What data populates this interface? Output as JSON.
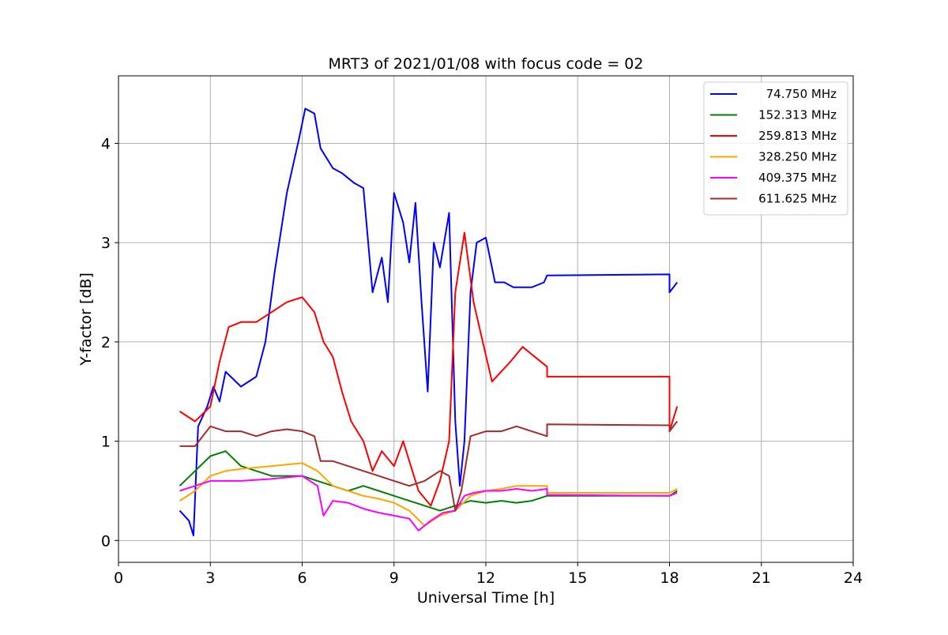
{
  "chart_data": {
    "type": "line",
    "title": "MRT3 of 2021/01/08 with focus code = 02",
    "xlabel": "Universal Time [h]",
    "ylabel": "Y-factor [dB]",
    "xlim": [
      0,
      24
    ],
    "ylim": [
      -0.22,
      4.68
    ],
    "xticks": [
      0,
      3,
      6,
      9,
      12,
      15,
      18,
      21,
      24
    ],
    "yticks": [
      0,
      1,
      2,
      3,
      4
    ],
    "grid": true,
    "legend_position": "top-right",
    "series": [
      {
        "name": "74.750 MHz",
        "color": "#0000ff",
        "points": [
          [
            2.0,
            0.3
          ],
          [
            2.3,
            0.2
          ],
          [
            2.45,
            0.05
          ],
          [
            2.6,
            1.15
          ],
          [
            2.9,
            1.35
          ],
          [
            3.1,
            1.55
          ],
          [
            3.3,
            1.4
          ],
          [
            3.5,
            1.7
          ],
          [
            4.0,
            1.55
          ],
          [
            4.5,
            1.65
          ],
          [
            4.8,
            2.0
          ],
          [
            5.1,
            2.7
          ],
          [
            5.5,
            3.5
          ],
          [
            5.9,
            4.05
          ],
          [
            6.1,
            4.35
          ],
          [
            6.4,
            4.3
          ],
          [
            6.6,
            3.95
          ],
          [
            7.0,
            3.75
          ],
          [
            7.3,
            3.7
          ],
          [
            7.7,
            3.6
          ],
          [
            8.0,
            3.55
          ],
          [
            8.3,
            2.5
          ],
          [
            8.6,
            2.85
          ],
          [
            8.8,
            2.4
          ],
          [
            9.0,
            3.5
          ],
          [
            9.3,
            3.2
          ],
          [
            9.5,
            2.8
          ],
          [
            9.7,
            3.4
          ],
          [
            9.9,
            2.4
          ],
          [
            10.1,
            1.5
          ],
          [
            10.3,
            3.0
          ],
          [
            10.5,
            2.75
          ],
          [
            10.8,
            3.3
          ],
          [
            11.0,
            1.2
          ],
          [
            11.15,
            0.55
          ],
          [
            11.3,
            1.0
          ],
          [
            11.5,
            2.5
          ],
          [
            11.7,
            3.0
          ],
          [
            12.0,
            3.05
          ],
          [
            12.3,
            2.6
          ],
          [
            12.6,
            2.6
          ],
          [
            12.9,
            2.55
          ],
          [
            13.2,
            2.55
          ],
          [
            13.5,
            2.55
          ],
          [
            13.9,
            2.6
          ],
          [
            14.0,
            2.67
          ],
          [
            18.0,
            2.68
          ],
          [
            18.0,
            2.5
          ],
          [
            18.25,
            2.6
          ]
        ]
      },
      {
        "name": "152.313 MHz",
        "color": "#008000",
        "points": [
          [
            2.0,
            0.55
          ],
          [
            2.5,
            0.7
          ],
          [
            3.0,
            0.85
          ],
          [
            3.5,
            0.9
          ],
          [
            4.0,
            0.75
          ],
          [
            5.0,
            0.65
          ],
          [
            6.0,
            0.65
          ],
          [
            6.5,
            0.6
          ],
          [
            7.0,
            0.55
          ],
          [
            7.5,
            0.5
          ],
          [
            8.0,
            0.55
          ],
          [
            8.5,
            0.5
          ],
          [
            9.0,
            0.45
          ],
          [
            9.5,
            0.4
          ],
          [
            10.0,
            0.35
          ],
          [
            10.5,
            0.3
          ],
          [
            11.0,
            0.35
          ],
          [
            11.5,
            0.4
          ],
          [
            12.0,
            0.38
          ],
          [
            12.5,
            0.4
          ],
          [
            13.0,
            0.38
          ],
          [
            13.5,
            0.4
          ],
          [
            14.0,
            0.45
          ],
          [
            18.0,
            0.45
          ],
          [
            18.25,
            0.5
          ]
        ]
      },
      {
        "name": "259.813 MHz",
        "color": "#ff0000",
        "points": [
          [
            2.0,
            1.3
          ],
          [
            2.5,
            1.2
          ],
          [
            3.0,
            1.35
          ],
          [
            3.3,
            1.8
          ],
          [
            3.6,
            2.15
          ],
          [
            4.0,
            2.2
          ],
          [
            4.5,
            2.2
          ],
          [
            5.0,
            2.3
          ],
          [
            5.5,
            2.4
          ],
          [
            6.0,
            2.45
          ],
          [
            6.4,
            2.3
          ],
          [
            6.7,
            2.0
          ],
          [
            7.0,
            1.85
          ],
          [
            7.3,
            1.5
          ],
          [
            7.6,
            1.2
          ],
          [
            8.0,
            1.0
          ],
          [
            8.3,
            0.7
          ],
          [
            8.6,
            0.9
          ],
          [
            9.0,
            0.75
          ],
          [
            9.3,
            1.0
          ],
          [
            9.5,
            0.8
          ],
          [
            9.8,
            0.5
          ],
          [
            10.2,
            0.35
          ],
          [
            10.5,
            0.6
          ],
          [
            10.8,
            1.0
          ],
          [
            11.0,
            2.5
          ],
          [
            11.3,
            3.1
          ],
          [
            11.6,
            2.4
          ],
          [
            11.9,
            2.0
          ],
          [
            12.2,
            1.6
          ],
          [
            12.5,
            1.7
          ],
          [
            12.8,
            1.8
          ],
          [
            13.2,
            1.95
          ],
          [
            13.6,
            1.85
          ],
          [
            14.0,
            1.75
          ],
          [
            14.0,
            1.65
          ],
          [
            18.0,
            1.65
          ],
          [
            18.0,
            1.1
          ],
          [
            18.25,
            1.35
          ]
        ]
      },
      {
        "name": "328.250 MHz",
        "color": "#ffa500",
        "points": [
          [
            2.0,
            0.4
          ],
          [
            2.5,
            0.5
          ],
          [
            3.0,
            0.65
          ],
          [
            3.5,
            0.7
          ],
          [
            4.0,
            0.72
          ],
          [
            5.0,
            0.75
          ],
          [
            6.0,
            0.78
          ],
          [
            6.5,
            0.7
          ],
          [
            7.0,
            0.55
          ],
          [
            7.5,
            0.5
          ],
          [
            8.0,
            0.45
          ],
          [
            8.5,
            0.42
          ],
          [
            9.0,
            0.38
          ],
          [
            9.5,
            0.3
          ],
          [
            10.0,
            0.15
          ],
          [
            10.5,
            0.25
          ],
          [
            11.0,
            0.3
          ],
          [
            11.5,
            0.45
          ],
          [
            12.0,
            0.5
          ],
          [
            12.5,
            0.52
          ],
          [
            13.0,
            0.55
          ],
          [
            13.5,
            0.55
          ],
          [
            14.0,
            0.55
          ],
          [
            14.0,
            0.48
          ],
          [
            18.0,
            0.48
          ],
          [
            18.25,
            0.52
          ]
        ]
      },
      {
        "name": "409.375 MHz",
        "color": "#ff00ff",
        "points": [
          [
            2.0,
            0.5
          ],
          [
            2.5,
            0.55
          ],
          [
            3.0,
            0.6
          ],
          [
            3.5,
            0.6
          ],
          [
            4.0,
            0.6
          ],
          [
            5.0,
            0.62
          ],
          [
            6.0,
            0.65
          ],
          [
            6.5,
            0.55
          ],
          [
            6.7,
            0.25
          ],
          [
            7.0,
            0.4
          ],
          [
            7.5,
            0.38
          ],
          [
            8.0,
            0.32
          ],
          [
            8.5,
            0.28
          ],
          [
            9.0,
            0.25
          ],
          [
            9.5,
            0.22
          ],
          [
            9.8,
            0.1
          ],
          [
            10.2,
            0.2
          ],
          [
            10.6,
            0.28
          ],
          [
            11.0,
            0.3
          ],
          [
            11.3,
            0.45
          ],
          [
            11.6,
            0.48
          ],
          [
            12.0,
            0.5
          ],
          [
            12.5,
            0.5
          ],
          [
            13.0,
            0.52
          ],
          [
            13.5,
            0.5
          ],
          [
            14.0,
            0.52
          ],
          [
            14.0,
            0.46
          ],
          [
            18.0,
            0.45
          ],
          [
            18.25,
            0.48
          ]
        ]
      },
      {
        "name": "611.625 MHz",
        "color": "#a52a2a",
        "points": [
          [
            2.0,
            0.95
          ],
          [
            2.5,
            0.95
          ],
          [
            3.0,
            1.15
          ],
          [
            3.5,
            1.1
          ],
          [
            4.0,
            1.1
          ],
          [
            4.5,
            1.05
          ],
          [
            5.0,
            1.1
          ],
          [
            5.5,
            1.12
          ],
          [
            6.0,
            1.1
          ],
          [
            6.4,
            1.05
          ],
          [
            6.6,
            0.8
          ],
          [
            7.0,
            0.8
          ],
          [
            7.5,
            0.75
          ],
          [
            8.0,
            0.7
          ],
          [
            8.5,
            0.65
          ],
          [
            9.0,
            0.6
          ],
          [
            9.5,
            0.55
          ],
          [
            10.0,
            0.6
          ],
          [
            10.5,
            0.7
          ],
          [
            10.8,
            0.65
          ],
          [
            11.0,
            0.3
          ],
          [
            11.2,
            0.5
          ],
          [
            11.5,
            1.05
          ],
          [
            12.0,
            1.1
          ],
          [
            12.5,
            1.1
          ],
          [
            13.0,
            1.15
          ],
          [
            13.5,
            1.1
          ],
          [
            14.0,
            1.05
          ],
          [
            14.0,
            1.17
          ],
          [
            18.0,
            1.16
          ],
          [
            18.0,
            1.1
          ],
          [
            18.25,
            1.2
          ]
        ]
      }
    ]
  }
}
